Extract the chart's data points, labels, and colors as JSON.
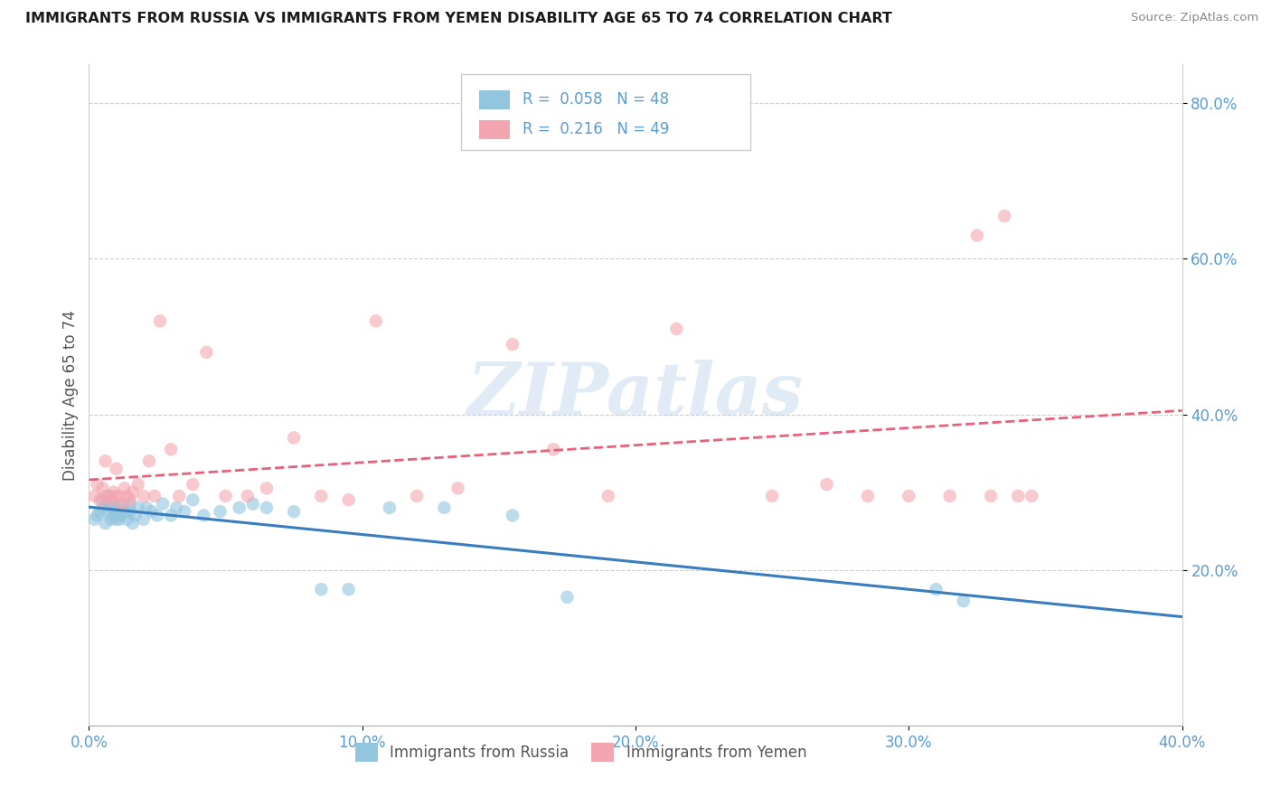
{
  "title": "IMMIGRANTS FROM RUSSIA VS IMMIGRANTS FROM YEMEN DISABILITY AGE 65 TO 74 CORRELATION CHART",
  "source": "Source: ZipAtlas.com",
  "ylabel": "Disability Age 65 to 74",
  "xlim": [
    0.0,
    0.4
  ],
  "ylim": [
    0.0,
    0.85
  ],
  "xticks": [
    0.0,
    0.1,
    0.2,
    0.3,
    0.4
  ],
  "xtick_labels": [
    "0.0%",
    "10.0%",
    "20.0%",
    "30.0%",
    "40.0%"
  ],
  "yticks": [
    0.2,
    0.4,
    0.6,
    0.8
  ],
  "ytick_labels": [
    "20.0%",
    "40.0%",
    "60.0%",
    "80.0%"
  ],
  "russia_R": 0.058,
  "russia_N": 48,
  "yemen_R": 0.216,
  "yemen_N": 49,
  "russia_color": "#92c5de",
  "yemen_color": "#f4a6b0",
  "russia_line_color": "#3a7dbf",
  "yemen_line_color": "#e8607a",
  "watermark": "ZIPatlas",
  "russia_scatter_x": [
    0.002,
    0.003,
    0.004,
    0.005,
    0.005,
    0.006,
    0.007,
    0.007,
    0.008,
    0.008,
    0.009,
    0.009,
    0.01,
    0.01,
    0.01,
    0.011,
    0.012,
    0.012,
    0.013,
    0.014,
    0.015,
    0.015,
    0.016,
    0.017,
    0.018,
    0.02,
    0.021,
    0.023,
    0.025,
    0.027,
    0.03,
    0.032,
    0.035,
    0.038,
    0.042,
    0.048,
    0.055,
    0.06,
    0.065,
    0.075,
    0.085,
    0.095,
    0.11,
    0.13,
    0.155,
    0.175,
    0.31,
    0.32
  ],
  "russia_scatter_y": [
    0.265,
    0.27,
    0.275,
    0.28,
    0.29,
    0.26,
    0.275,
    0.285,
    0.265,
    0.295,
    0.27,
    0.28,
    0.265,
    0.275,
    0.285,
    0.265,
    0.27,
    0.28,
    0.275,
    0.265,
    0.275,
    0.285,
    0.26,
    0.27,
    0.28,
    0.265,
    0.28,
    0.275,
    0.27,
    0.285,
    0.27,
    0.28,
    0.275,
    0.29,
    0.27,
    0.275,
    0.28,
    0.285,
    0.28,
    0.275,
    0.175,
    0.175,
    0.28,
    0.28,
    0.27,
    0.165,
    0.175,
    0.16
  ],
  "yemen_scatter_x": [
    0.002,
    0.003,
    0.004,
    0.005,
    0.006,
    0.006,
    0.007,
    0.008,
    0.009,
    0.01,
    0.01,
    0.011,
    0.012,
    0.013,
    0.014,
    0.015,
    0.016,
    0.018,
    0.02,
    0.022,
    0.024,
    0.026,
    0.03,
    0.033,
    0.038,
    0.043,
    0.05,
    0.058,
    0.065,
    0.075,
    0.085,
    0.095,
    0.105,
    0.12,
    0.135,
    0.155,
    0.17,
    0.19,
    0.215,
    0.25,
    0.27,
    0.285,
    0.3,
    0.315,
    0.325,
    0.33,
    0.335,
    0.34,
    0.345
  ],
  "yemen_scatter_y": [
    0.295,
    0.31,
    0.29,
    0.305,
    0.295,
    0.34,
    0.295,
    0.29,
    0.3,
    0.295,
    0.33,
    0.295,
    0.285,
    0.305,
    0.295,
    0.29,
    0.3,
    0.31,
    0.295,
    0.34,
    0.295,
    0.52,
    0.355,
    0.295,
    0.31,
    0.48,
    0.295,
    0.295,
    0.305,
    0.37,
    0.295,
    0.29,
    0.52,
    0.295,
    0.305,
    0.49,
    0.355,
    0.295,
    0.51,
    0.295,
    0.31,
    0.295,
    0.295,
    0.295,
    0.63,
    0.295,
    0.655,
    0.295,
    0.295
  ],
  "legend_russia_label": "Immigrants from Russia",
  "legend_yemen_label": "Immigrants from Yemen"
}
